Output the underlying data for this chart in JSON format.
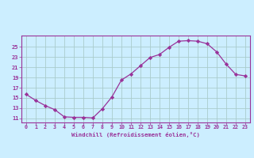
{
  "x": [
    0,
    1,
    2,
    3,
    4,
    5,
    6,
    7,
    8,
    9,
    10,
    11,
    12,
    13,
    14,
    15,
    16,
    17,
    18,
    19,
    20,
    21,
    22,
    23
  ],
  "y": [
    15.7,
    14.5,
    13.5,
    12.7,
    11.3,
    11.2,
    11.2,
    11.1,
    12.9,
    15.2,
    18.5,
    19.7,
    21.3,
    22.9,
    23.5,
    24.9,
    26.1,
    26.2,
    26.1,
    25.6,
    24.0,
    21.6,
    19.6,
    19.3
  ],
  "line_color": "#993399",
  "marker": "D",
  "marker_size": 2.2,
  "bg_color": "#cceeff",
  "grid_color": "#aacccc",
  "xlabel": "Windchill (Refroidissement éolien,°C)",
  "xlabel_color": "#993399",
  "tick_color": "#993399",
  "ytick_labels": [
    "11",
    "13",
    "15",
    "17",
    "19",
    "21",
    "23",
    "25"
  ],
  "ytick_values": [
    11,
    13,
    15,
    17,
    19,
    21,
    23,
    25
  ],
  "xtick_values": [
    0,
    1,
    2,
    3,
    4,
    5,
    6,
    7,
    8,
    9,
    10,
    11,
    12,
    13,
    14,
    15,
    16,
    17,
    18,
    19,
    20,
    21,
    22,
    23
  ],
  "ylim": [
    10.2,
    27.2
  ],
  "xlim": [
    -0.5,
    23.5
  ]
}
